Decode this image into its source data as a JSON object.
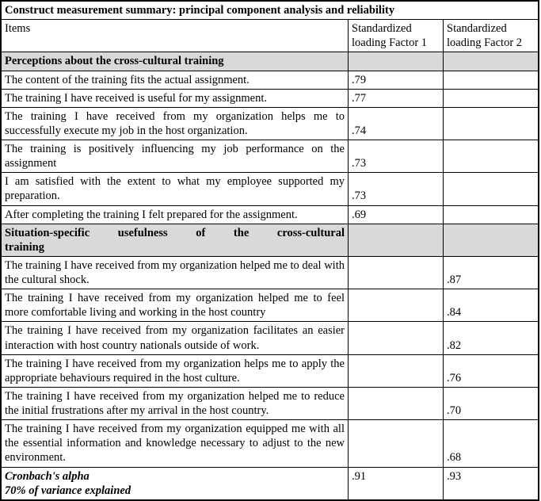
{
  "table": {
    "title": "Construct measurement summary: principal component analysis and reliability",
    "headers": {
      "items": "Items",
      "factor1": "Standardized loading Factor 1",
      "factor2": "Standardized loading Factor 2"
    },
    "section1": "Perceptions about the cross-cultural training",
    "rows1": [
      {
        "item": "The content of the training fits the actual assignment.",
        "f1": ".79",
        "f2": ""
      },
      {
        "item": "The training I have received is useful for my assignment.",
        "f1": ".77",
        "f2": ""
      },
      {
        "item": "The training I have received from my organization helps me to successfully execute my job in the host organization.",
        "f1": ".74",
        "f2": ""
      },
      {
        "item": "The training is positively influencing my job performance on the assignment",
        "f1": ".73",
        "f2": ""
      },
      {
        "item": "I am satisfied with the extent to what my employee supported my preparation.",
        "f1": ".73",
        "f2": ""
      },
      {
        "item": "After completing the training I felt prepared for the assignment.",
        "f1": ".69",
        "f2": ""
      }
    ],
    "section2_l1": "Situation-specific usefulness of the cross-cultural",
    "section2_l2": "training",
    "rows2": [
      {
        "item": "The training I have received from my organization helped me to deal with the cultural shock.",
        "f1": "",
        "f2": ".87"
      },
      {
        "item": "The training I have received from my organization helped me to feel more comfortable living and working in the host country",
        "f1": "",
        "f2": ".84"
      },
      {
        "item": "The training I have received from my organization facilitates an easier interaction with host country nationals outside of work.",
        "f1": "",
        "f2": ".82"
      },
      {
        "item": "The training I have received from my organization helps me to apply the appropriate behaviours required in the host culture.",
        "f1": "",
        "f2": ".76"
      },
      {
        "item": "The training I have received from my organization helped me to reduce the initial frustrations after my arrival in the host country.",
        "f1": "",
        "f2": ".70"
      },
      {
        "item": "The training I have received from my organization equipped me with all the essential information and knowledge necessary to adjust to the new environment.",
        "f1": "",
        "f2": ".68"
      }
    ],
    "cronbach": {
      "label_l1": "Cronbach's alpha",
      "label_l2": "70% of variance explained",
      "f1": ".91",
      "f2": ".93"
    }
  }
}
